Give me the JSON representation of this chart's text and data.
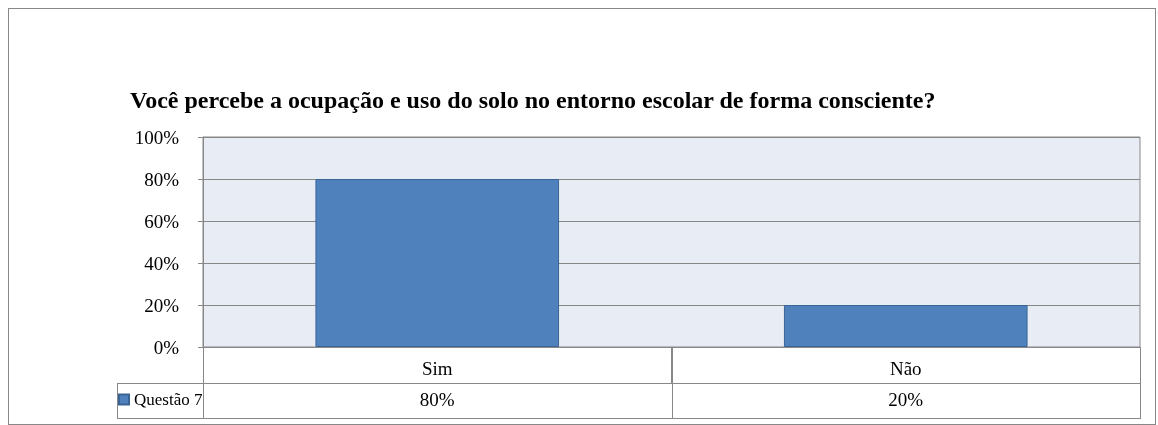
{
  "chart_data": {
    "type": "bar",
    "title": "Você percebe a ocupação e uso do solo no entorno escolar de forma consciente?",
    "categories": [
      "Sim",
      "Não"
    ],
    "series": [
      {
        "name": "Questão 7",
        "color": "#4f81bd",
        "values": [
          80,
          20
        ],
        "value_labels": [
          "80%",
          "20%"
        ]
      }
    ],
    "ylim": [
      0,
      100
    ],
    "yticks": [
      {
        "value": 0,
        "label": "0%"
      },
      {
        "value": 20,
        "label": "20%"
      },
      {
        "value": 40,
        "label": "40%"
      },
      {
        "value": 60,
        "label": "60%"
      },
      {
        "value": 80,
        "label": "80%"
      },
      {
        "value": 100,
        "label": "100%"
      }
    ],
    "grid": "y",
    "legend": "bottom left"
  }
}
